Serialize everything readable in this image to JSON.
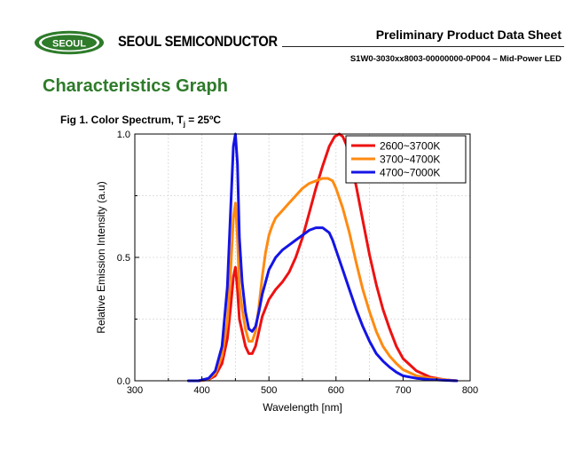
{
  "header": {
    "logo_text": "SEOUL",
    "company": "SEOUL SEMICONDUCTOR",
    "doc_title": "Preliminary Product Data Sheet",
    "part_number": "S1W0-3030xx8003-00000000-0P004 – Mid-Power LED"
  },
  "section_title": "Characteristics Graph",
  "figure": {
    "caption_main": "Fig 1. Color Spectrum, T",
    "caption_sub": "j",
    "caption_tail": " = 25ºC"
  },
  "colors": {
    "brand_green": "#2e7b2a",
    "series_red": "#ee1111",
    "series_orange": "#ff8a10",
    "series_blue": "#1414e6"
  },
  "chart_data": {
    "type": "line",
    "title": "",
    "xlabel": "Wavelength [nm]",
    "ylabel": "Relative Emission Intensity (a.u)",
    "xlim": [
      300,
      800
    ],
    "ylim": [
      0.0,
      1.0
    ],
    "xticks": [
      300,
      400,
      500,
      600,
      700,
      800
    ],
    "yticks": [
      0.0,
      0.5,
      1.0
    ],
    "ytick_labels": [
      "0.0",
      "0.5",
      "1.0"
    ],
    "grid": true,
    "legend_position": "top-right",
    "series": [
      {
        "name": "2600~3700K",
        "color": "#ee1111",
        "x": [
          380,
          395,
          410,
          420,
          430,
          438,
          443,
          447,
          450,
          453,
          456,
          460,
          465,
          470,
          475,
          480,
          485,
          490,
          500,
          510,
          520,
          530,
          540,
          550,
          560,
          570,
          580,
          590,
          598,
          605,
          610,
          615,
          620,
          630,
          640,
          650,
          660,
          670,
          680,
          690,
          700,
          720,
          740,
          760,
          780
        ],
        "y": [
          0.0,
          0.0,
          0.005,
          0.02,
          0.07,
          0.17,
          0.3,
          0.42,
          0.46,
          0.37,
          0.25,
          0.2,
          0.14,
          0.11,
          0.11,
          0.14,
          0.2,
          0.26,
          0.33,
          0.37,
          0.4,
          0.44,
          0.5,
          0.58,
          0.68,
          0.78,
          0.87,
          0.95,
          0.99,
          1.0,
          0.99,
          0.96,
          0.91,
          0.79,
          0.65,
          0.51,
          0.39,
          0.29,
          0.21,
          0.14,
          0.09,
          0.04,
          0.015,
          0.005,
          0.0
        ]
      },
      {
        "name": "3700~4700K",
        "color": "#ff8a10",
        "x": [
          380,
          395,
          410,
          420,
          430,
          438,
          443,
          447,
          450,
          453,
          456,
          460,
          465,
          470,
          475,
          480,
          485,
          490,
          495,
          500,
          505,
          510,
          520,
          530,
          540,
          550,
          560,
          570,
          580,
          588,
          595,
          600,
          610,
          620,
          630,
          640,
          650,
          660,
          670,
          680,
          690,
          700,
          720,
          740,
          760,
          780
        ],
        "y": [
          0.0,
          0.0,
          0.007,
          0.03,
          0.1,
          0.24,
          0.45,
          0.66,
          0.72,
          0.58,
          0.38,
          0.29,
          0.21,
          0.16,
          0.16,
          0.2,
          0.3,
          0.42,
          0.52,
          0.59,
          0.63,
          0.66,
          0.69,
          0.72,
          0.75,
          0.78,
          0.8,
          0.81,
          0.82,
          0.82,
          0.81,
          0.78,
          0.7,
          0.6,
          0.48,
          0.37,
          0.28,
          0.2,
          0.14,
          0.1,
          0.07,
          0.045,
          0.02,
          0.01,
          0.005,
          0.0
        ]
      },
      {
        "name": "4700~7000K",
        "color": "#1414e6",
        "x": [
          380,
          395,
          410,
          420,
          430,
          438,
          443,
          447,
          450,
          453,
          456,
          460,
          465,
          470,
          475,
          480,
          485,
          490,
          495,
          500,
          510,
          520,
          530,
          540,
          550,
          560,
          570,
          580,
          590,
          595,
          600,
          610,
          620,
          630,
          640,
          650,
          660,
          670,
          680,
          690,
          700,
          720,
          740,
          760,
          780
        ],
        "y": [
          0.0,
          0.0,
          0.01,
          0.04,
          0.14,
          0.38,
          0.7,
          0.95,
          1.0,
          0.88,
          0.58,
          0.4,
          0.28,
          0.21,
          0.2,
          0.22,
          0.28,
          0.35,
          0.4,
          0.45,
          0.5,
          0.53,
          0.55,
          0.57,
          0.59,
          0.61,
          0.62,
          0.62,
          0.6,
          0.57,
          0.53,
          0.45,
          0.37,
          0.29,
          0.22,
          0.16,
          0.11,
          0.08,
          0.055,
          0.035,
          0.02,
          0.01,
          0.005,
          0.002,
          0.0
        ]
      }
    ]
  }
}
